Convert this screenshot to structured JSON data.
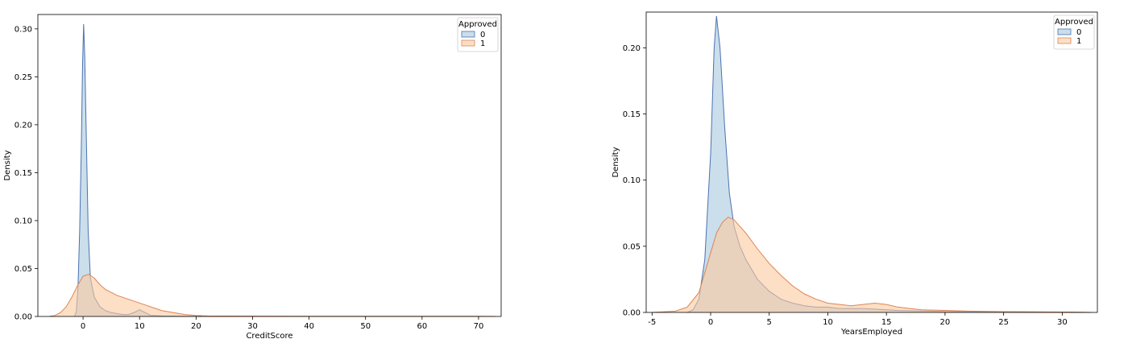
{
  "chart_data": [
    {
      "type": "area",
      "xlabel": "CreditScore",
      "ylabel": "Density",
      "xlim": [
        -8,
        74
      ],
      "ylim": [
        0,
        0.315
      ],
      "xticks": [
        0,
        10,
        20,
        30,
        40,
        50,
        60,
        70
      ],
      "yticks": [
        0.0,
        0.05,
        0.1,
        0.15,
        0.2,
        0.25,
        0.3
      ],
      "ytick_labels": [
        "0.00",
        "0.05",
        "0.10",
        "0.15",
        "0.20",
        "0.25",
        "0.30"
      ],
      "legend": {
        "title": "Approved",
        "position": "top-right"
      },
      "grid": false,
      "series": [
        {
          "name": "0",
          "fill": "#a6c8e0",
          "stroke": "#4c72b0",
          "points": [
            [
              -1.5,
              0
            ],
            [
              -1.2,
              0.005
            ],
            [
              -0.9,
              0.03
            ],
            [
              -0.6,
              0.09
            ],
            [
              -0.3,
              0.18
            ],
            [
              -0.1,
              0.26
            ],
            [
              0.1,
              0.305
            ],
            [
              0.3,
              0.27
            ],
            [
              0.6,
              0.18
            ],
            [
              0.9,
              0.09
            ],
            [
              1.3,
              0.04
            ],
            [
              2,
              0.02
            ],
            [
              3,
              0.01
            ],
            [
              4,
              0.006
            ],
            [
              5,
              0.004
            ],
            [
              6,
              0.003
            ],
            [
              7,
              0.002
            ],
            [
              8,
              0.002
            ],
            [
              9,
              0.004
            ],
            [
              10,
              0.007
            ],
            [
              11,
              0.004
            ],
            [
              12,
              0.001
            ],
            [
              14,
              0.0005
            ],
            [
              18,
              0.0002
            ],
            [
              21,
              0
            ]
          ]
        },
        {
          "name": "1",
          "fill": "#fbc9a0",
          "stroke": "#dd8452",
          "points": [
            [
              -6,
              0
            ],
            [
              -5,
              0.001
            ],
            [
              -4,
              0.004
            ],
            [
              -3,
              0.01
            ],
            [
              -2,
              0.02
            ],
            [
              -1,
              0.032
            ],
            [
              0,
              0.042
            ],
            [
              1,
              0.044
            ],
            [
              2,
              0.04
            ],
            [
              3,
              0.033
            ],
            [
              4,
              0.028
            ],
            [
              5,
              0.025
            ],
            [
              6,
              0.022
            ],
            [
              7,
              0.02
            ],
            [
              8,
              0.018
            ],
            [
              9,
              0.016
            ],
            [
              10,
              0.014
            ],
            [
              11,
              0.012
            ],
            [
              12,
              0.01
            ],
            [
              13,
              0.008
            ],
            [
              14,
              0.006
            ],
            [
              15,
              0.005
            ],
            [
              16,
              0.004
            ],
            [
              17,
              0.003
            ],
            [
              18,
              0.002
            ],
            [
              20,
              0.001
            ],
            [
              22,
              0.0005
            ],
            [
              30,
              0.0003
            ],
            [
              40,
              0.0002
            ],
            [
              50,
              0.0002
            ],
            [
              60,
              0.0002
            ],
            [
              70,
              0.0002
            ],
            [
              73,
              0
            ]
          ]
        }
      ]
    },
    {
      "type": "area",
      "xlabel": "YearsEmployed",
      "ylabel": "Density",
      "xlim": [
        -5.5,
        33
      ],
      "ylim": [
        0,
        0.227
      ],
      "xticks": [
        -5,
        0,
        5,
        10,
        15,
        20,
        25,
        30
      ],
      "yticks": [
        0.0,
        0.05,
        0.1,
        0.15,
        0.2
      ],
      "ytick_labels": [
        "0.00",
        "0.05",
        "0.10",
        "0.15",
        "0.20"
      ],
      "legend": {
        "title": "Approved",
        "position": "top-right"
      },
      "grid": false,
      "series": [
        {
          "name": "0",
          "fill": "#a6c8e0",
          "stroke": "#4c72b0",
          "points": [
            [
              -2,
              0
            ],
            [
              -1.5,
              0.002
            ],
            [
              -1,
              0.01
            ],
            [
              -0.5,
              0.04
            ],
            [
              0,
              0.12
            ],
            [
              0.3,
              0.2
            ],
            [
              0.5,
              0.224
            ],
            [
              0.8,
              0.2
            ],
            [
              1.2,
              0.14
            ],
            [
              1.6,
              0.09
            ],
            [
              2,
              0.065
            ],
            [
              2.5,
              0.05
            ],
            [
              3,
              0.04
            ],
            [
              4,
              0.025
            ],
            [
              5,
              0.016
            ],
            [
              6,
              0.01
            ],
            [
              7,
              0.007
            ],
            [
              8,
              0.005
            ],
            [
              9,
              0.004
            ],
            [
              10,
              0.004
            ],
            [
              11,
              0.003
            ],
            [
              12,
              0.003
            ],
            [
              13,
              0.003
            ],
            [
              14,
              0.0025
            ],
            [
              16,
              0.0015
            ],
            [
              20,
              0.0007
            ],
            [
              25,
              0.0003
            ],
            [
              30,
              0.0002
            ],
            [
              32.5,
              0
            ]
          ]
        },
        {
          "name": "1",
          "fill": "#fbc9a0",
          "stroke": "#dd8452",
          "points": [
            [
              -5,
              0
            ],
            [
              -3,
              0.001
            ],
            [
              -2,
              0.004
            ],
            [
              -1,
              0.015
            ],
            [
              0,
              0.045
            ],
            [
              0.5,
              0.06
            ],
            [
              1,
              0.068
            ],
            [
              1.5,
              0.072
            ],
            [
              2,
              0.07
            ],
            [
              3,
              0.06
            ],
            [
              4,
              0.048
            ],
            [
              5,
              0.037
            ],
            [
              6,
              0.028
            ],
            [
              7,
              0.02
            ],
            [
              8,
              0.014
            ],
            [
              9,
              0.01
            ],
            [
              10,
              0.007
            ],
            [
              11,
              0.006
            ],
            [
              12,
              0.005
            ],
            [
              13,
              0.006
            ],
            [
              14,
              0.007
            ],
            [
              15,
              0.006
            ],
            [
              16,
              0.004
            ],
            [
              17,
              0.003
            ],
            [
              18,
              0.002
            ],
            [
              20,
              0.0015
            ],
            [
              22,
              0.001
            ],
            [
              25,
              0.0006
            ],
            [
              30,
              0.0003
            ],
            [
              32.5,
              0
            ]
          ]
        }
      ]
    }
  ]
}
